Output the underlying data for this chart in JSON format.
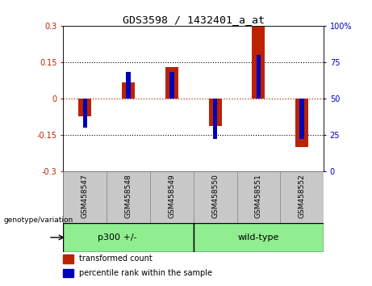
{
  "title": "GDS3598 / 1432401_a_at",
  "samples": [
    "GSM458547",
    "GSM458548",
    "GSM458549",
    "GSM458550",
    "GSM458551",
    "GSM458552"
  ],
  "transformed_counts": [
    -0.075,
    0.065,
    0.13,
    -0.115,
    0.295,
    -0.2
  ],
  "percentile_ranks": [
    30,
    68,
    68,
    22,
    80,
    22
  ],
  "groups": [
    {
      "label": "p300 +/-",
      "color": "#90ee90",
      "start": 0,
      "end": 3
    },
    {
      "label": "wild-type",
      "color": "#90ee90",
      "start": 3,
      "end": 6
    }
  ],
  "group_boundary": 3,
  "ylim_left": [
    -0.3,
    0.3
  ],
  "ylim_right": [
    0,
    100
  ],
  "yticks_left": [
    -0.3,
    -0.15,
    0,
    0.15,
    0.3
  ],
  "yticks_left_labels": [
    "-0.3",
    "-0.15",
    "0",
    "0.15",
    "0.3"
  ],
  "yticks_right": [
    0,
    25,
    50,
    75,
    100
  ],
  "yticks_right_labels": [
    "0",
    "25",
    "50",
    "75",
    "100%"
  ],
  "bar_color_red": "#bb2200",
  "bar_color_blue": "#0000bb",
  "dotted_lines": [
    -0.15,
    0.15
  ],
  "legend_red_label": "transformed count",
  "legend_blue_label": "percentile rank within the sample",
  "genotype_label": "genotype/variation",
  "bar_width": 0.3,
  "blue_bar_width": 0.1,
  "sample_box_color": "#c8c8c8",
  "plot_bg_color": "#ffffff",
  "fig_bg_color": "#ffffff"
}
